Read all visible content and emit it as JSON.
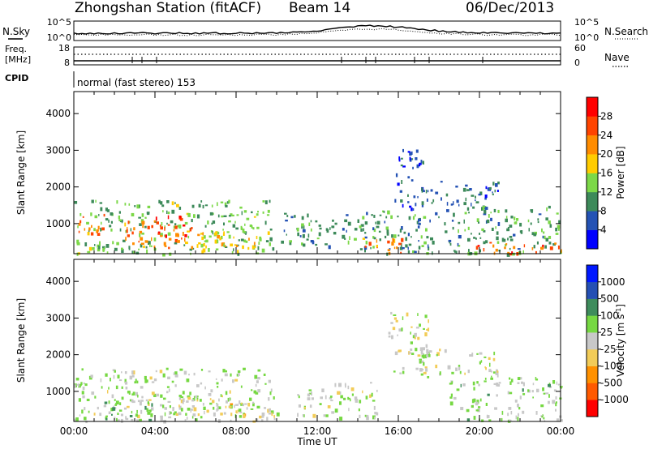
{
  "header": {
    "station": "Zhongshan Station (fitACF)",
    "beam": "Beam 14",
    "date": "06/Dec/2013"
  },
  "top_panels": {
    "nsky_label": "N.Sky",
    "nsky_ticks": [
      "10^5",
      "10^0"
    ],
    "nsearch_label": "N.Search",
    "nsearch_ticks": [
      "10^5",
      "10^0"
    ],
    "freq_label_1": "Freq.",
    "freq_label_2": "[MHz]",
    "freq_ticks": [
      "18",
      "8"
    ],
    "nave_label": "Nave",
    "nave_ticks": [
      "60",
      "0"
    ],
    "cpid_label": "CPID",
    "cpid_value": "normal (fast stereo) 153"
  },
  "colors": {
    "power": [
      "#0000ff",
      "#2452b4",
      "#3d8a5a",
      "#7cd848",
      "#ffcc00",
      "#ff8c00",
      "#ff4400",
      "#ff0000"
    ],
    "velocity": [
      "#ff0000",
      "#ff5a00",
      "#ff9100",
      "#f2cc58",
      "#c8c8c8",
      "#76d842",
      "#3e8c5c",
      "#2550b4",
      "#0018ff"
    ]
  },
  "chart_data": [
    {
      "type": "heatmap",
      "name": "Power",
      "ylabel": "Slant Range [km]",
      "yticks": [
        "1000",
        "2000",
        "3000",
        "4000"
      ],
      "ylim": [
        180,
        4600
      ],
      "xlim": [
        0,
        24
      ],
      "colorbar_label": "Power [dB]",
      "colorbar_ticks": [
        "4",
        "8",
        "12",
        "16",
        "20",
        "24",
        "28"
      ],
      "colorbar_range": [
        0,
        32
      ],
      "echo_regions": [
        {
          "t0": 0.0,
          "t1": 9.8,
          "r0": 190,
          "r1": 1650,
          "v": 13
        },
        {
          "t0": 0.2,
          "t1": 1.6,
          "r0": 700,
          "r1": 1300,
          "v": 24
        },
        {
          "t0": 2.5,
          "t1": 5.8,
          "r0": 350,
          "r1": 1100,
          "v": 23
        },
        {
          "t0": 4.0,
          "t1": 5.5,
          "r0": 700,
          "r1": 1250,
          "v": 27
        },
        {
          "t0": 5.0,
          "t1": 9.0,
          "r0": 300,
          "r1": 800,
          "v": 19
        },
        {
          "t0": 10.2,
          "t1": 14.0,
          "r0": 400,
          "r1": 1300,
          "v": 10
        },
        {
          "t0": 14.0,
          "t1": 18.5,
          "r0": 200,
          "r1": 1400,
          "v": 10
        },
        {
          "t0": 14.2,
          "t1": 16.5,
          "r0": 200,
          "r1": 700,
          "v": 22
        },
        {
          "t0": 15.8,
          "t1": 17.2,
          "r0": 1400,
          "r1": 3100,
          "v": 6
        },
        {
          "t0": 17.0,
          "t1": 21.0,
          "r0": 1500,
          "r1": 2200,
          "v": 7
        },
        {
          "t0": 18.5,
          "t1": 24.0,
          "r0": 190,
          "r1": 1500,
          "v": 11
        },
        {
          "t0": 19.5,
          "t1": 24.0,
          "r0": 190,
          "r1": 500,
          "v": 25
        }
      ]
    },
    {
      "type": "heatmap",
      "name": "Velocity",
      "ylabel": "Slant Range [km]",
      "yticks": [
        "1000",
        "2000",
        "3000",
        "4000"
      ],
      "ylim": [
        180,
        4600
      ],
      "xlim": [
        0,
        24
      ],
      "xticks": [
        "00:00",
        "04:00",
        "08:00",
        "12:00",
        "16:00",
        "20:00",
        "00:00"
      ],
      "xlabel": "Time UT",
      "colorbar_label": "Velocity [m s^-1]",
      "colorbar_ticks": [
        "-1000",
        "-500",
        "-100",
        "-25",
        "25",
        "100",
        "500",
        "1000"
      ],
      "colorbar_range": [
        -1500,
        1500
      ],
      "echo_regions": [
        {
          "t0": 0.0,
          "t1": 10.0,
          "r0": 190,
          "r1": 1650,
          "v": 120
        },
        {
          "t0": 1.5,
          "t1": 4.5,
          "r0": 190,
          "r1": 800,
          "v": 300
        },
        {
          "t0": 5.0,
          "t1": 7.5,
          "r0": 300,
          "r1": 900,
          "v": -100
        },
        {
          "t0": 7.5,
          "t1": 10.0,
          "r0": 190,
          "r1": 700,
          "v": -300
        },
        {
          "t0": 11.0,
          "t1": 15.0,
          "r0": 300,
          "r1": 1300,
          "v": 80
        },
        {
          "t0": 15.5,
          "t1": 17.5,
          "r0": 1500,
          "r1": 3200,
          "v": 0
        },
        {
          "t0": 17.0,
          "t1": 21.0,
          "r0": 1400,
          "r1": 2200,
          "v": 0
        },
        {
          "t0": 18.5,
          "t1": 24.0,
          "r0": 190,
          "r1": 1400,
          "v": 200
        }
      ]
    }
  ]
}
